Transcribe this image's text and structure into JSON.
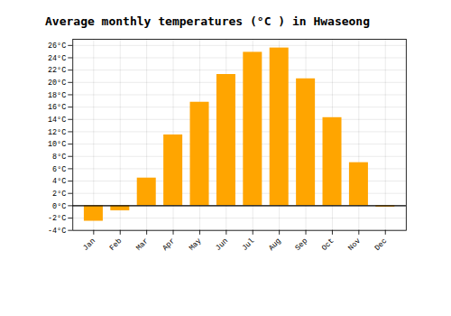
{
  "chart_data": {
    "type": "bar",
    "title": "Average monthly temperatures (°C ) in Hwaseong",
    "categories": [
      "Jan",
      "Feb",
      "Mar",
      "Apr",
      "May",
      "Jun",
      "Jul",
      "Aug",
      "Sep",
      "Oct",
      "Nov",
      "Dec"
    ],
    "values": [
      -2.5,
      -0.8,
      4.5,
      11.5,
      16.8,
      21.3,
      24.9,
      25.6,
      20.6,
      14.3,
      7.0,
      -0.2
    ],
    "color": "#FFA500",
    "ylim": [
      -4,
      27
    ],
    "yticks": [
      {
        "value": -4,
        "label": "-4°C"
      },
      {
        "value": -2,
        "label": "-2°C"
      },
      {
        "value": 0,
        "label": "0°C"
      },
      {
        "value": 2,
        "label": "2°C"
      },
      {
        "value": 4,
        "label": "4°C"
      },
      {
        "value": 6,
        "label": "6°C"
      },
      {
        "value": 8,
        "label": "8°C"
      },
      {
        "value": 10,
        "label": "10°C"
      },
      {
        "value": 12,
        "label": "12°C"
      },
      {
        "value": 14,
        "label": "14°C"
      },
      {
        "value": 16,
        "label": "16°C"
      },
      {
        "value": 18,
        "label": "18°C"
      },
      {
        "value": 20,
        "label": "20°C"
      },
      {
        "value": 22,
        "label": "22°C"
      },
      {
        "value": 24,
        "label": "24°C"
      },
      {
        "value": 26,
        "label": "26°C"
      }
    ],
    "grid": true
  }
}
